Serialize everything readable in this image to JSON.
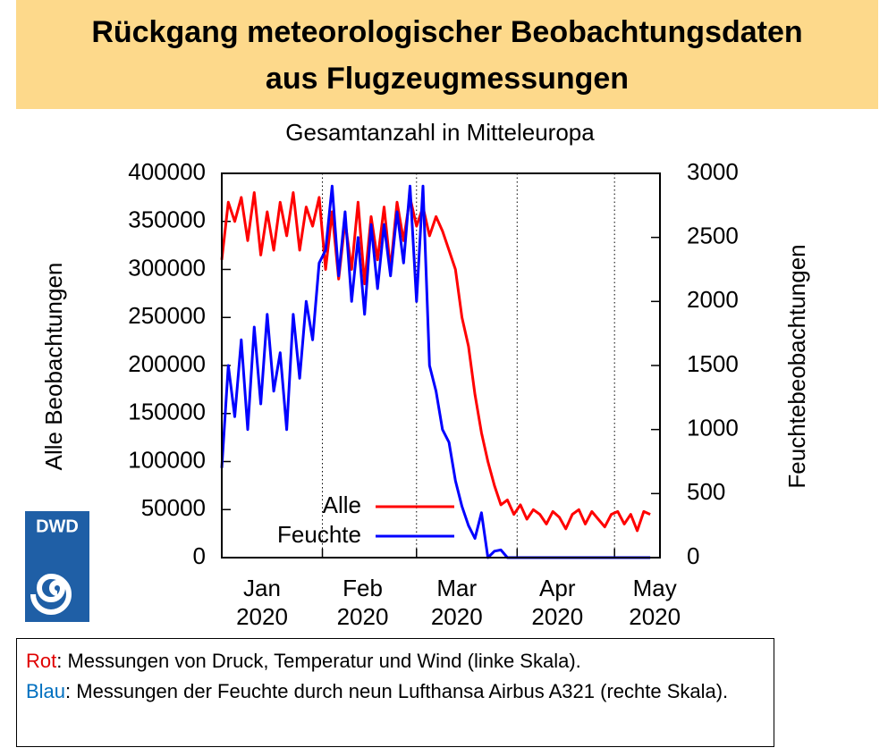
{
  "title": [
    "Rückgang meteorologischer Beobachtungsdaten",
    "aus Flugzeugmessungen"
  ],
  "logo": "DWD",
  "caption": {
    "red_label": "Rot",
    "red_text": ": Messungen von Druck, Temperatur und Wind (linke Skala).",
    "blue_label": "Blau",
    "blue_text": ": Messungen der Feuchte durch neun Lufthansa Airbus A321 (rechte Skala)."
  },
  "chart_data": {
    "type": "line",
    "title": "Gesamtanzahl in Mitteleuropa",
    "ylabel": "Alle Beobachtungen",
    "y2label": "Feuchtebeobachtungen",
    "grid": true,
    "xlim": [
      "2020-01-01",
      "2020-05-15"
    ],
    "xticks": [
      {
        "value": "2020-01-01",
        "label": "Jan 2020"
      },
      {
        "value": "2020-02-01",
        "label": "Feb 2020"
      },
      {
        "value": "2020-03-01",
        "label": "Mar 2020"
      },
      {
        "value": "2020-04-01",
        "label": "Apr 2020"
      },
      {
        "value": "2020-05-01",
        "label": "May 2020"
      }
    ],
    "ylim": [
      0,
      400000
    ],
    "yticks": [
      0,
      50000,
      100000,
      150000,
      200000,
      250000,
      300000,
      350000,
      400000
    ],
    "y2lim": [
      0,
      3000
    ],
    "y2ticks": [
      0,
      500,
      1000,
      1500,
      2000,
      2500,
      3000
    ],
    "x": [
      "2020-01-01",
      "2020-01-03",
      "2020-01-05",
      "2020-01-07",
      "2020-01-09",
      "2020-01-11",
      "2020-01-13",
      "2020-01-15",
      "2020-01-17",
      "2020-01-19",
      "2020-01-21",
      "2020-01-23",
      "2020-01-25",
      "2020-01-27",
      "2020-01-29",
      "2020-01-31",
      "2020-02-02",
      "2020-02-04",
      "2020-02-06",
      "2020-02-08",
      "2020-02-10",
      "2020-02-12",
      "2020-02-14",
      "2020-02-16",
      "2020-02-18",
      "2020-02-20",
      "2020-02-22",
      "2020-02-24",
      "2020-02-26",
      "2020-02-28",
      "2020-03-01",
      "2020-03-03",
      "2020-03-05",
      "2020-03-07",
      "2020-03-09",
      "2020-03-11",
      "2020-03-13",
      "2020-03-15",
      "2020-03-17",
      "2020-03-19",
      "2020-03-21",
      "2020-03-23",
      "2020-03-25",
      "2020-03-27",
      "2020-03-29",
      "2020-03-31",
      "2020-04-02",
      "2020-04-04",
      "2020-04-06",
      "2020-04-08",
      "2020-04-10",
      "2020-04-12",
      "2020-04-14",
      "2020-04-16",
      "2020-04-18",
      "2020-04-20",
      "2020-04-22",
      "2020-04-24",
      "2020-04-26",
      "2020-04-28",
      "2020-04-30",
      "2020-05-02",
      "2020-05-04",
      "2020-05-06",
      "2020-05-08",
      "2020-05-10",
      "2020-05-12"
    ],
    "series": [
      {
        "name": "Alle",
        "color": "#ff0000",
        "values": [
          310000,
          370000,
          350000,
          375000,
          330000,
          380000,
          315000,
          360000,
          320000,
          370000,
          335000,
          380000,
          320000,
          365000,
          345000,
          375000,
          300000,
          360000,
          290000,
          350000,
          300000,
          370000,
          285000,
          355000,
          310000,
          365000,
          300000,
          370000,
          330000,
          375000,
          345000,
          365000,
          335000,
          355000,
          340000,
          320000,
          300000,
          250000,
          220000,
          170000,
          130000,
          100000,
          75000,
          55000,
          60000,
          45000,
          55000,
          40000,
          50000,
          45000,
          35000,
          48000,
          42000,
          30000,
          45000,
          50000,
          35000,
          48000,
          40000,
          32000,
          45000,
          48000,
          35000,
          45000,
          28000,
          48000,
          45000
        ]
      },
      {
        "name": "Feuchte",
        "color": "#0000ff",
        "axis": "y2",
        "values": [
          700,
          1500,
          1100,
          1700,
          1000,
          1800,
          1200,
          1900,
          1300,
          1600,
          1000,
          1900,
          1400,
          2000,
          1700,
          2300,
          2400,
          2900,
          2200,
          2700,
          2000,
          2500,
          1900,
          2600,
          2100,
          2600,
          2200,
          2700,
          2300,
          2900,
          2000,
          2900,
          1500,
          1300,
          1000,
          900,
          600,
          400,
          250,
          150,
          350,
          0,
          50,
          60,
          0,
          0,
          0,
          0,
          0,
          0,
          0,
          0,
          0,
          0,
          0,
          0,
          0,
          0,
          0,
          0,
          0,
          0,
          0,
          0,
          0,
          0,
          0
        ]
      }
    ]
  }
}
